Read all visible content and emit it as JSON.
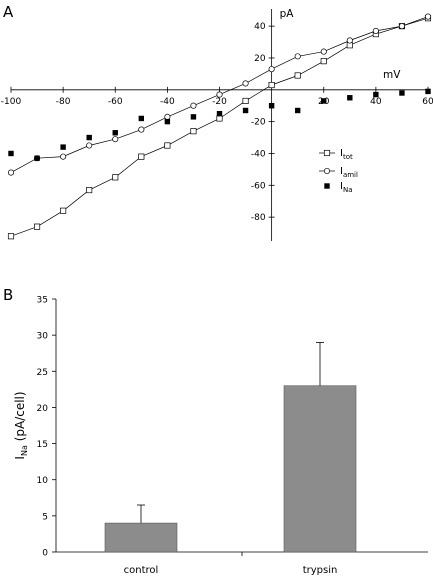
{
  "chart_data": [
    {
      "panel": "A",
      "type": "line",
      "xlabel": "mV",
      "ylabel": "pA",
      "xlim": [
        -100,
        60
      ],
      "ylim": [
        -95,
        47
      ],
      "x_ticks": [
        -100,
        -80,
        -60,
        -40,
        -20,
        20,
        40,
        60
      ],
      "y_ticks": [
        -80,
        -60,
        -40,
        -20,
        20,
        40
      ],
      "grid": false,
      "legend_position": "right",
      "series": [
        {
          "name": "I",
          "subscript": "tot",
          "marker": "open-square",
          "line": true,
          "x": [
            -100,
            -90,
            -80,
            -70,
            -60,
            -50,
            -40,
            -30,
            -20,
            -10,
            0,
            10,
            20,
            30,
            40,
            50,
            60
          ],
          "y": [
            -92,
            -86,
            -76,
            -63,
            -55,
            -42,
            -35,
            -26,
            -18,
            -7,
            3,
            9,
            18,
            28,
            35,
            40,
            45
          ]
        },
        {
          "name": "I",
          "subscript": "amil",
          "marker": "open-circle",
          "line": true,
          "x": [
            -100,
            -90,
            -80,
            -70,
            -60,
            -50,
            -40,
            -30,
            -20,
            -10,
            0,
            10,
            20,
            30,
            40,
            50,
            60
          ],
          "y": [
            -52,
            -43,
            -42,
            -35,
            -31,
            -25,
            -17,
            -10,
            -3,
            4,
            13,
            21,
            24,
            31,
            37,
            40,
            46
          ]
        },
        {
          "name": "I",
          "subscript": "Na",
          "marker": "filled-square",
          "line": false,
          "x": [
            -100,
            -90,
            -80,
            -70,
            -60,
            -50,
            -40,
            -30,
            -20,
            -10,
            0,
            10,
            20,
            30,
            40,
            50,
            60
          ],
          "y": [
            -40,
            -43,
            -36,
            -30,
            -27,
            -18,
            -20,
            -17,
            -15,
            -13,
            -10,
            -13,
            -7,
            -5,
            -3,
            -2,
            -1
          ]
        }
      ]
    },
    {
      "panel": "B",
      "type": "bar",
      "categories": [
        "control",
        "trypsin"
      ],
      "values": [
        4,
        23
      ],
      "errors": [
        2.5,
        6
      ],
      "ylabel": "I",
      "ylabel_sub": "Na",
      "ylabel_unit": " (pA/cell)",
      "ylim": [
        0,
        35
      ],
      "y_ticks": [
        0,
        5,
        10,
        15,
        20,
        25,
        30,
        35
      ],
      "bar_color": "#8c8c8c",
      "grid": false
    }
  ]
}
